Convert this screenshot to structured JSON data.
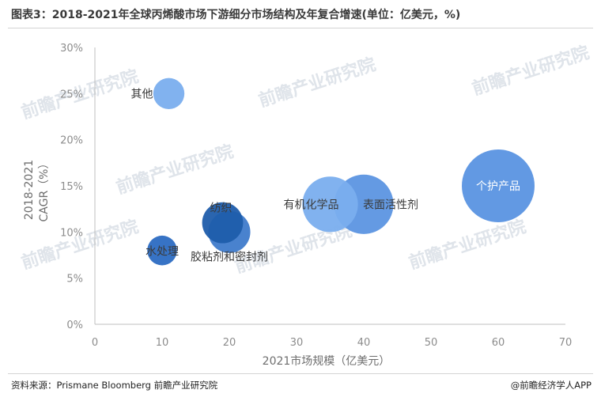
{
  "page": {
    "title": "图表3：2018-2021年全球丙烯酸市场下游细分市场结构及年复合增速(单位：亿美元，%)",
    "source": "资料来源：Prismane Bloomberg 前瞻产业研究院",
    "credit": "@前瞻经济学人APP",
    "watermark": "前瞻产业研究院"
  },
  "chart_data": {
    "type": "scatter",
    "subtype": "bubble",
    "xlabel": "2021市场规模（亿美元）",
    "ylabel_lines": [
      "2018-2021",
      "CAGR（%）"
    ],
    "xlim": [
      0,
      70
    ],
    "ylim": [
      0,
      30
    ],
    "xticks": [
      "0",
      "10",
      "20",
      "30",
      "40",
      "50",
      "60",
      "70"
    ],
    "yticks": [
      "0%",
      "5%",
      "10%",
      "15%",
      "20%",
      "25%",
      "30%"
    ],
    "grid": false,
    "series": [
      {
        "name": "其他",
        "x": 11,
        "y": 25,
        "size": 11,
        "color": "#7aaeee"
      },
      {
        "name": "纺织",
        "x": 19,
        "y": 11,
        "size": 19,
        "color": "#1f5dab"
      },
      {
        "name": "胶粘剂和密封剂",
        "x": 20,
        "y": 10,
        "size": 20,
        "color": "#3f7bcb"
      },
      {
        "name": "水处理",
        "x": 10,
        "y": 8,
        "size": 10,
        "color": "#2c6bc2"
      },
      {
        "name": "有机化学品",
        "x": 35,
        "y": 13,
        "size": 35,
        "color": "#7aaeee"
      },
      {
        "name": "表面活性剂",
        "x": 40,
        "y": 13,
        "size": 40,
        "color": "#5c95e2"
      },
      {
        "name": "个护产品",
        "x": 60,
        "y": 15,
        "size": 60,
        "color": "#5a93e2"
      }
    ]
  }
}
